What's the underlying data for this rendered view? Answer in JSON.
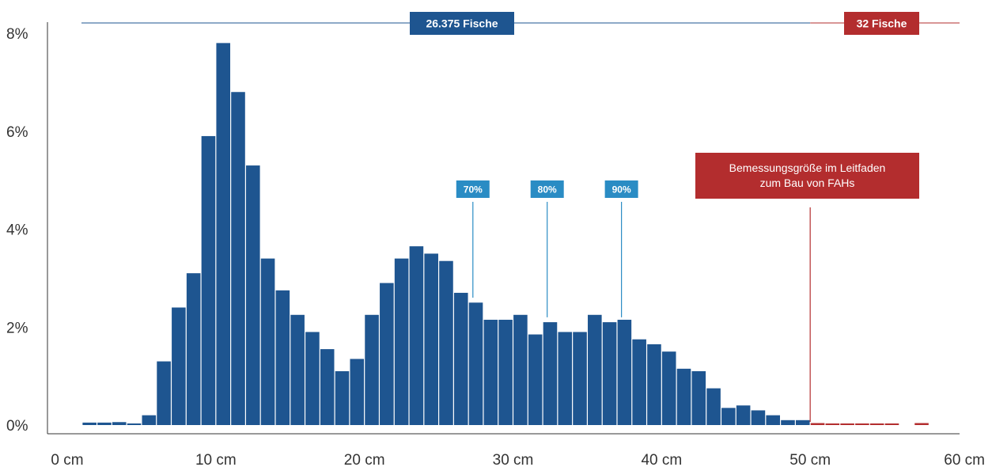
{
  "chart_data": {
    "type": "bar",
    "x_unit": "cm",
    "bin_width_cm": 1,
    "xlim": [
      0,
      60
    ],
    "ylim": [
      0,
      8
    ],
    "x_tick_labels": [
      "0 cm",
      "10 cm",
      "20 cm",
      "30 cm",
      "40 cm",
      "50 cm",
      "60 cm"
    ],
    "y_tick_labels": [
      "0%",
      "2%",
      "4%",
      "6%",
      "8%"
    ],
    "grid": false,
    "series": [
      {
        "group": "main",
        "color": "#1e5590",
        "x_start": 1,
        "values": [
          0.05,
          0.05,
          0.06,
          0.03,
          0.2,
          1.3,
          2.4,
          3.1,
          5.9,
          7.8,
          6.8,
          5.3,
          3.4,
          2.75,
          2.25,
          1.9,
          1.55,
          1.1,
          1.35,
          2.25,
          2.9,
          3.4,
          3.65,
          3.5,
          3.35,
          2.7,
          2.5,
          2.15,
          2.15,
          2.25,
          1.85,
          2.1,
          1.9,
          1.9,
          2.25,
          2.1,
          2.15,
          1.75,
          1.65,
          1.5,
          1.15,
          1.1,
          0.75,
          0.35,
          0.4,
          0.3,
          0.2,
          0.1,
          0.1
        ]
      },
      {
        "group": "tail",
        "color": "#b32d2e",
        "x_start": 50,
        "values": [
          0.04,
          0.02,
          0.02,
          0.03,
          0.01,
          0.01,
          0,
          0.04
        ]
      }
    ],
    "group_labels": {
      "main": "26.375 Fische",
      "tail": "32 Fische"
    },
    "percentile_markers": [
      {
        "label": "70%",
        "x": 27.3,
        "y": 2.6
      },
      {
        "label": "80%",
        "x": 32.3,
        "y": 2.2
      },
      {
        "label": "90%",
        "x": 37.3,
        "y": 2.2
      }
    ],
    "threshold": {
      "x": 50,
      "label_lines": [
        "Bemessungsgröße im Leitfaden",
        "zum Bau von FAHs"
      ]
    }
  }
}
